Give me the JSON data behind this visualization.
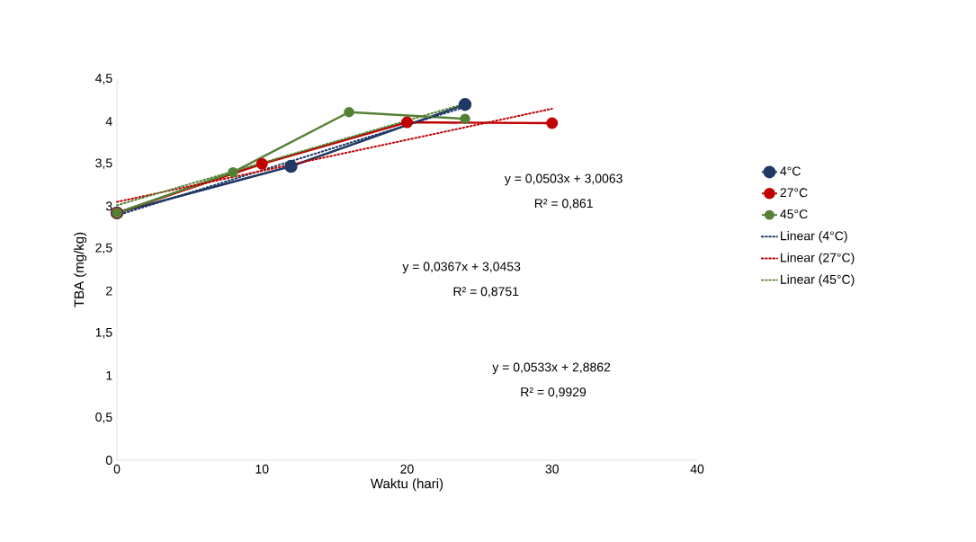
{
  "chart_data": {
    "type": "line",
    "xlabel": "Waktu (hari)",
    "ylabel": "TBA (mg/kg)",
    "xlim": [
      0,
      40
    ],
    "xticks": [
      0,
      10,
      20,
      30,
      40
    ],
    "ylim": [
      0,
      4.5
    ],
    "yticks": [
      0,
      {
        "value": 0.5,
        "label": "0,5"
      },
      1,
      {
        "value": 1.5,
        "label": "1,5"
      },
      2,
      {
        "value": 2.5,
        "label": "2,5"
      },
      3,
      {
        "value": 3.5,
        "label": "3,5"
      },
      4,
      {
        "value": 4.5,
        "label": "4,5"
      }
    ],
    "grid": false,
    "legend": "right",
    "series": [
      {
        "name": "4°C",
        "color": "#203864",
        "marker": "circle",
        "line_style": "solid",
        "x": [
          0,
          12,
          24
        ],
        "values": [
          2.92,
          3.47,
          4.2
        ]
      },
      {
        "name": "27°C",
        "color": "#c00000",
        "marker": "circle",
        "line_style": "solid",
        "x": [
          0,
          10,
          20,
          30
        ],
        "values": [
          2.92,
          3.5,
          3.99,
          3.98
        ]
      },
      {
        "name": "45°C",
        "color": "#548235",
        "marker": "circle",
        "line_style": "solid",
        "x": [
          0,
          8,
          16,
          24
        ],
        "values": [
          2.92,
          3.4,
          4.11,
          4.03
        ]
      },
      {
        "name": "Linear (4°C)",
        "color": "#203864",
        "marker": "none",
        "line_style": "dotted",
        "x": [
          0,
          24
        ],
        "values": [
          2.89,
          4.17
        ]
      },
      {
        "name": "Linear (27°C)",
        "color": "#c00000",
        "marker": "none",
        "line_style": "dotted",
        "x": [
          0,
          30
        ],
        "values": [
          3.05,
          4.15
        ]
      },
      {
        "name": "Linear (45°C)",
        "color": "#548235",
        "marker": "none",
        "line_style": "dotted",
        "x": [
          0,
          24
        ],
        "values": [
          3.01,
          4.21
        ]
      }
    ],
    "annotations": [
      "y = 0,0503x + 3,0063",
      "R² = 0,861",
      "y = 0,0367x + 3,0453",
      "R² = 0,8751",
      "y = 0,0533x + 2,8862",
      "R² = 0,9929"
    ]
  }
}
